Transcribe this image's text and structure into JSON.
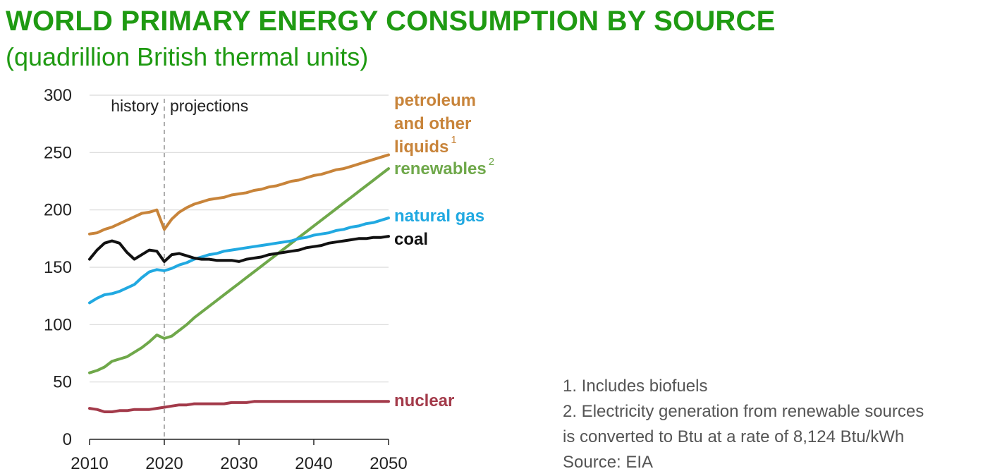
{
  "header": {
    "title": "WORLD PRIMARY ENERGY CONSUMPTION BY SOURCE",
    "subtitle": "(quadrillion British thermal units)"
  },
  "notes": {
    "note1": "1. Includes biofuels",
    "note2_line1": "2. Electricity generation from renewable sources",
    "note2_line2": "is converted to Btu at a rate of 8,124 Btu/kWh",
    "source": "Source: EIA"
  },
  "chart_data": {
    "type": "line",
    "title": "WORLD PRIMARY ENERGY CONSUMPTION BY SOURCE",
    "ylabel": "quadrillion British thermal units",
    "xlim": [
      2010,
      2050
    ],
    "ylim": [
      0,
      300
    ],
    "xticks": [
      2010,
      2020,
      2030,
      2040,
      2050
    ],
    "yticks": [
      0,
      50,
      100,
      150,
      200,
      250,
      300
    ],
    "grid": "horizontal",
    "divider": {
      "x": 2020,
      "left_label": "history",
      "right_label": "projections"
    },
    "colors": {
      "petroleum": "#c8843a",
      "renewables": "#6fa84a",
      "natural_gas": "#21a9e1",
      "coal": "#111111",
      "nuclear": "#a33a4a",
      "grid": "#d9d9d9",
      "axis": "#222222"
    },
    "series": [
      {
        "key": "petroleum",
        "label_lines": [
          "petroleum",
          "and other",
          "liquids"
        ],
        "superscript": "1",
        "x": [
          2010,
          2011,
          2012,
          2013,
          2014,
          2015,
          2016,
          2017,
          2018,
          2019,
          2020,
          2021,
          2022,
          2023,
          2024,
          2025,
          2026,
          2027,
          2028,
          2029,
          2030,
          2031,
          2032,
          2033,
          2034,
          2035,
          2036,
          2037,
          2038,
          2039,
          2040,
          2041,
          2042,
          2043,
          2044,
          2045,
          2046,
          2047,
          2048,
          2049,
          2050
        ],
        "values": [
          179,
          180,
          183,
          185,
          188,
          191,
          194,
          197,
          198,
          200,
          183,
          192,
          198,
          202,
          205,
          207,
          209,
          210,
          211,
          213,
          214,
          215,
          217,
          218,
          220,
          221,
          223,
          225,
          226,
          228,
          230,
          231,
          233,
          235,
          236,
          238,
          240,
          242,
          244,
          246,
          248
        ]
      },
      {
        "key": "renewables",
        "label_lines": [
          "renewables"
        ],
        "superscript": "2",
        "x": [
          2010,
          2011,
          2012,
          2013,
          2014,
          2015,
          2016,
          2017,
          2018,
          2019,
          2020,
          2021,
          2022,
          2023,
          2024,
          2025,
          2026,
          2027,
          2028,
          2029,
          2030,
          2031,
          2032,
          2033,
          2034,
          2035,
          2036,
          2037,
          2038,
          2039,
          2040,
          2041,
          2042,
          2043,
          2044,
          2045,
          2046,
          2047,
          2048,
          2049,
          2050
        ],
        "values": [
          58,
          60,
          63,
          68,
          70,
          72,
          76,
          80,
          85,
          91,
          88,
          90,
          95,
          100,
          106,
          111,
          116,
          121,
          126,
          131,
          136,
          141,
          146,
          151,
          156,
          161,
          166,
          171,
          176,
          181,
          186,
          191,
          196,
          201,
          206,
          211,
          216,
          221,
          226,
          231,
          236
        ]
      },
      {
        "key": "natural_gas",
        "label_lines": [
          "natural gas"
        ],
        "superscript": "",
        "x": [
          2010,
          2011,
          2012,
          2013,
          2014,
          2015,
          2016,
          2017,
          2018,
          2019,
          2020,
          2021,
          2022,
          2023,
          2024,
          2025,
          2026,
          2027,
          2028,
          2029,
          2030,
          2031,
          2032,
          2033,
          2034,
          2035,
          2036,
          2037,
          2038,
          2039,
          2040,
          2041,
          2042,
          2043,
          2044,
          2045,
          2046,
          2047,
          2048,
          2049,
          2050
        ],
        "values": [
          119,
          123,
          126,
          127,
          129,
          132,
          135,
          141,
          146,
          148,
          147,
          149,
          152,
          154,
          157,
          159,
          161,
          162,
          164,
          165,
          166,
          167,
          168,
          169,
          170,
          171,
          172,
          173,
          175,
          176,
          178,
          179,
          180,
          182,
          183,
          185,
          186,
          188,
          189,
          191,
          193
        ]
      },
      {
        "key": "coal",
        "label_lines": [
          "coal"
        ],
        "superscript": "",
        "x": [
          2010,
          2011,
          2012,
          2013,
          2014,
          2015,
          2016,
          2017,
          2018,
          2019,
          2020,
          2021,
          2022,
          2023,
          2024,
          2025,
          2026,
          2027,
          2028,
          2029,
          2030,
          2031,
          2032,
          2033,
          2034,
          2035,
          2036,
          2037,
          2038,
          2039,
          2040,
          2041,
          2042,
          2043,
          2044,
          2045,
          2046,
          2047,
          2048,
          2049,
          2050
        ],
        "values": [
          157,
          165,
          171,
          173,
          171,
          163,
          157,
          161,
          165,
          164,
          155,
          161,
          162,
          160,
          158,
          157,
          157,
          156,
          156,
          156,
          155,
          157,
          158,
          159,
          161,
          162,
          163,
          164,
          165,
          167,
          168,
          169,
          171,
          172,
          173,
          174,
          175,
          175,
          176,
          176,
          177
        ]
      },
      {
        "key": "nuclear",
        "label_lines": [
          "nuclear"
        ],
        "superscript": "",
        "x": [
          2010,
          2011,
          2012,
          2013,
          2014,
          2015,
          2016,
          2017,
          2018,
          2019,
          2020,
          2021,
          2022,
          2023,
          2024,
          2025,
          2026,
          2027,
          2028,
          2029,
          2030,
          2031,
          2032,
          2033,
          2034,
          2035,
          2036,
          2037,
          2038,
          2039,
          2040,
          2041,
          2042,
          2043,
          2044,
          2045,
          2046,
          2047,
          2048,
          2049,
          2050
        ],
        "values": [
          27,
          26,
          24,
          24,
          25,
          25,
          26,
          26,
          26,
          27,
          28,
          29,
          30,
          30,
          31,
          31,
          31,
          31,
          31,
          32,
          32,
          32,
          33,
          33,
          33,
          33,
          33,
          33,
          33,
          33,
          33,
          33,
          33,
          33,
          33,
          33,
          33,
          33,
          33,
          33,
          33
        ]
      }
    ]
  }
}
